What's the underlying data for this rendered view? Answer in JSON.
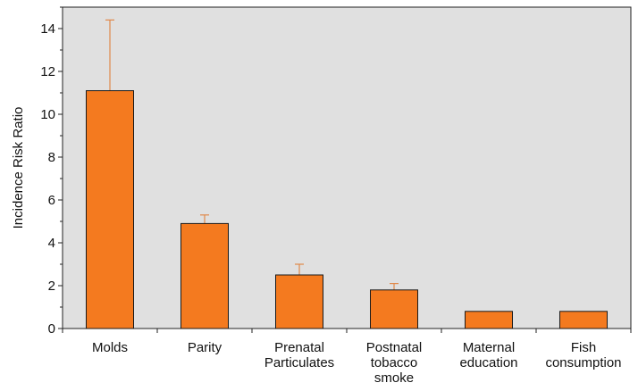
{
  "colors": {
    "bar_fill": "#f47a1f",
    "bar_stroke": "#1a1a1a",
    "error_bar": "#e0894a",
    "plot_background": "#e0e0e0",
    "axis": "#222222"
  },
  "chart_data": {
    "type": "bar",
    "title": "",
    "xlabel": "",
    "ylabel": "Incidence Risk Ratio",
    "ylim": [
      0,
      15
    ],
    "yticks": [
      "0",
      "2",
      "4",
      "6",
      "8",
      "10",
      "12",
      "14"
    ],
    "grid": false,
    "legend": "none",
    "categories": [
      [
        "Molds"
      ],
      [
        "Parity"
      ],
      [
        "Prenatal",
        "Particulates"
      ],
      [
        "Postnatal",
        "tobacco",
        "smoke"
      ],
      [
        "Maternal",
        "education"
      ],
      [
        "Fish",
        "consumption"
      ]
    ],
    "values": [
      11.1,
      4.9,
      2.5,
      1.8,
      0.8,
      0.8
    ],
    "error_upper": [
      14.4,
      5.3,
      3.0,
      2.1,
      0.8,
      0.8
    ]
  }
}
